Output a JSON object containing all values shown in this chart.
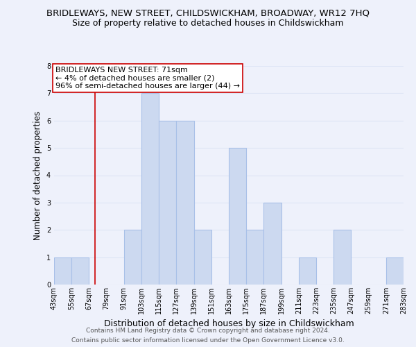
{
  "title": "BRIDLEWAYS, NEW STREET, CHILDSWICKHAM, BROADWAY, WR12 7HQ",
  "subtitle": "Size of property relative to detached houses in Childswickham",
  "xlabel": "Distribution of detached houses by size in Childswickham",
  "ylabel": "Number of detached properties",
  "bin_edges": [
    43,
    55,
    67,
    79,
    91,
    103,
    115,
    127,
    139,
    151,
    163,
    175,
    187,
    199,
    211,
    223,
    235,
    247,
    259,
    271,
    283
  ],
  "bin_labels": [
    "43sqm",
    "55sqm",
    "67sqm",
    "79sqm",
    "91sqm",
    "103sqm",
    "115sqm",
    "127sqm",
    "139sqm",
    "151sqm",
    "163sqm",
    "175sqm",
    "187sqm",
    "199sqm",
    "211sqm",
    "223sqm",
    "235sqm",
    "247sqm",
    "259sqm",
    "271sqm",
    "283sqm"
  ],
  "counts": [
    1,
    1,
    0,
    0,
    2,
    7,
    6,
    6,
    2,
    0,
    5,
    2,
    3,
    0,
    1,
    0,
    2,
    0,
    0,
    1
  ],
  "bar_color": "#ccd9f0",
  "bar_edgecolor": "#a8c0e8",
  "property_line_x": 71,
  "property_line_color": "#cc0000",
  "ylim": [
    0,
    8
  ],
  "yticks": [
    0,
    1,
    2,
    3,
    4,
    5,
    6,
    7,
    8
  ],
  "annotation_box_text": "BRIDLEWAYS NEW STREET: 71sqm\n← 4% of detached houses are smaller (2)\n96% of semi-detached houses are larger (44) →",
  "annotation_box_facecolor": "#ffffff",
  "annotation_box_edgecolor": "#cc0000",
  "footnote1": "Contains HM Land Registry data © Crown copyright and database right 2024.",
  "footnote2": "Contains public sector information licensed under the Open Government Licence v3.0.",
  "background_color": "#eef1fb",
  "grid_color": "#dde4f5",
  "title_fontsize": 9.5,
  "subtitle_fontsize": 9,
  "xlabel_fontsize": 9,
  "ylabel_fontsize": 8.5,
  "tick_fontsize": 7,
  "annotation_fontsize": 8,
  "footnote_fontsize": 6.5
}
